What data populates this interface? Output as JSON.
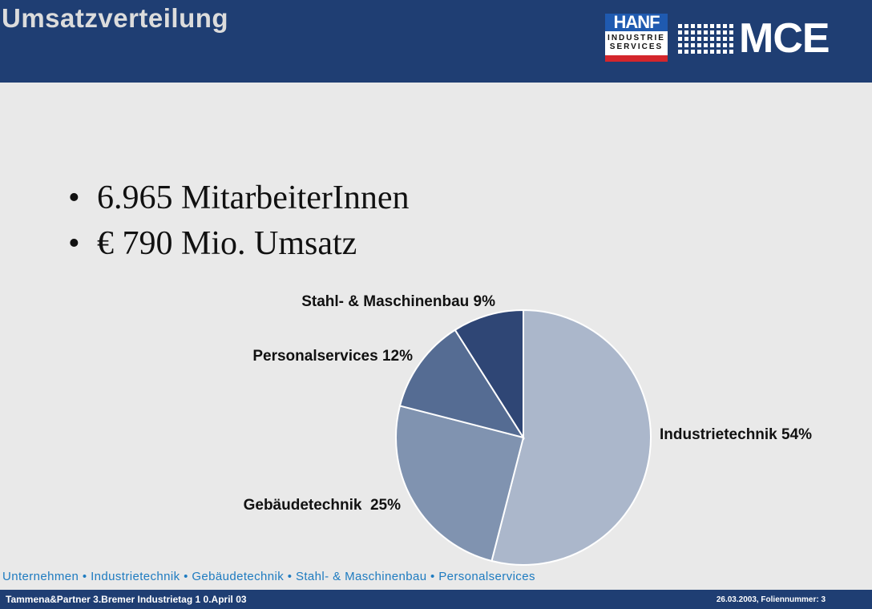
{
  "header": {
    "title": "Umsatzverteilung",
    "logos": {
      "hanf": {
        "name": "HANF",
        "lines": [
          "INDUSTRIE",
          "SERVICES"
        ]
      },
      "mce": {
        "name": "MCE"
      }
    }
  },
  "bullets": [
    {
      "text": "6.965 MitarbeiterInnen"
    },
    {
      "text": "€ 790 Mio. Umsatz"
    }
  ],
  "chart_data": {
    "type": "pie",
    "title": "",
    "slices": [
      {
        "label": "Industrietechnik 54%",
        "value": 54,
        "color": "#abb7cb"
      },
      {
        "label": "Gebäudetechnik  25%",
        "value": 25,
        "color": "#8093b0"
      },
      {
        "label": "Personalservices 12%",
        "value": 12,
        "color": "#556c93"
      },
      {
        "label": "Stahl- & Maschinenbau 9%",
        "value": 9,
        "color": "#2f4675"
      }
    ]
  },
  "nav": {
    "text": "Unternehmen  • Industrietechnik  • Gebäudetechnik  • Stahl- & Maschinenbau  • Personalservices"
  },
  "footer": {
    "left": "Tammena&Partner  3.Bremer Industrietag  1 0.April 03",
    "right": "26.03.2003, Foliennummer: 3"
  },
  "colors": {
    "header_bg": "#1f3e73",
    "page_bg": "#e9e9e9",
    "nav_text": "#1e7bc0",
    "hanf_blue": "#1f5ab0",
    "hanf_red": "#d4262c"
  }
}
